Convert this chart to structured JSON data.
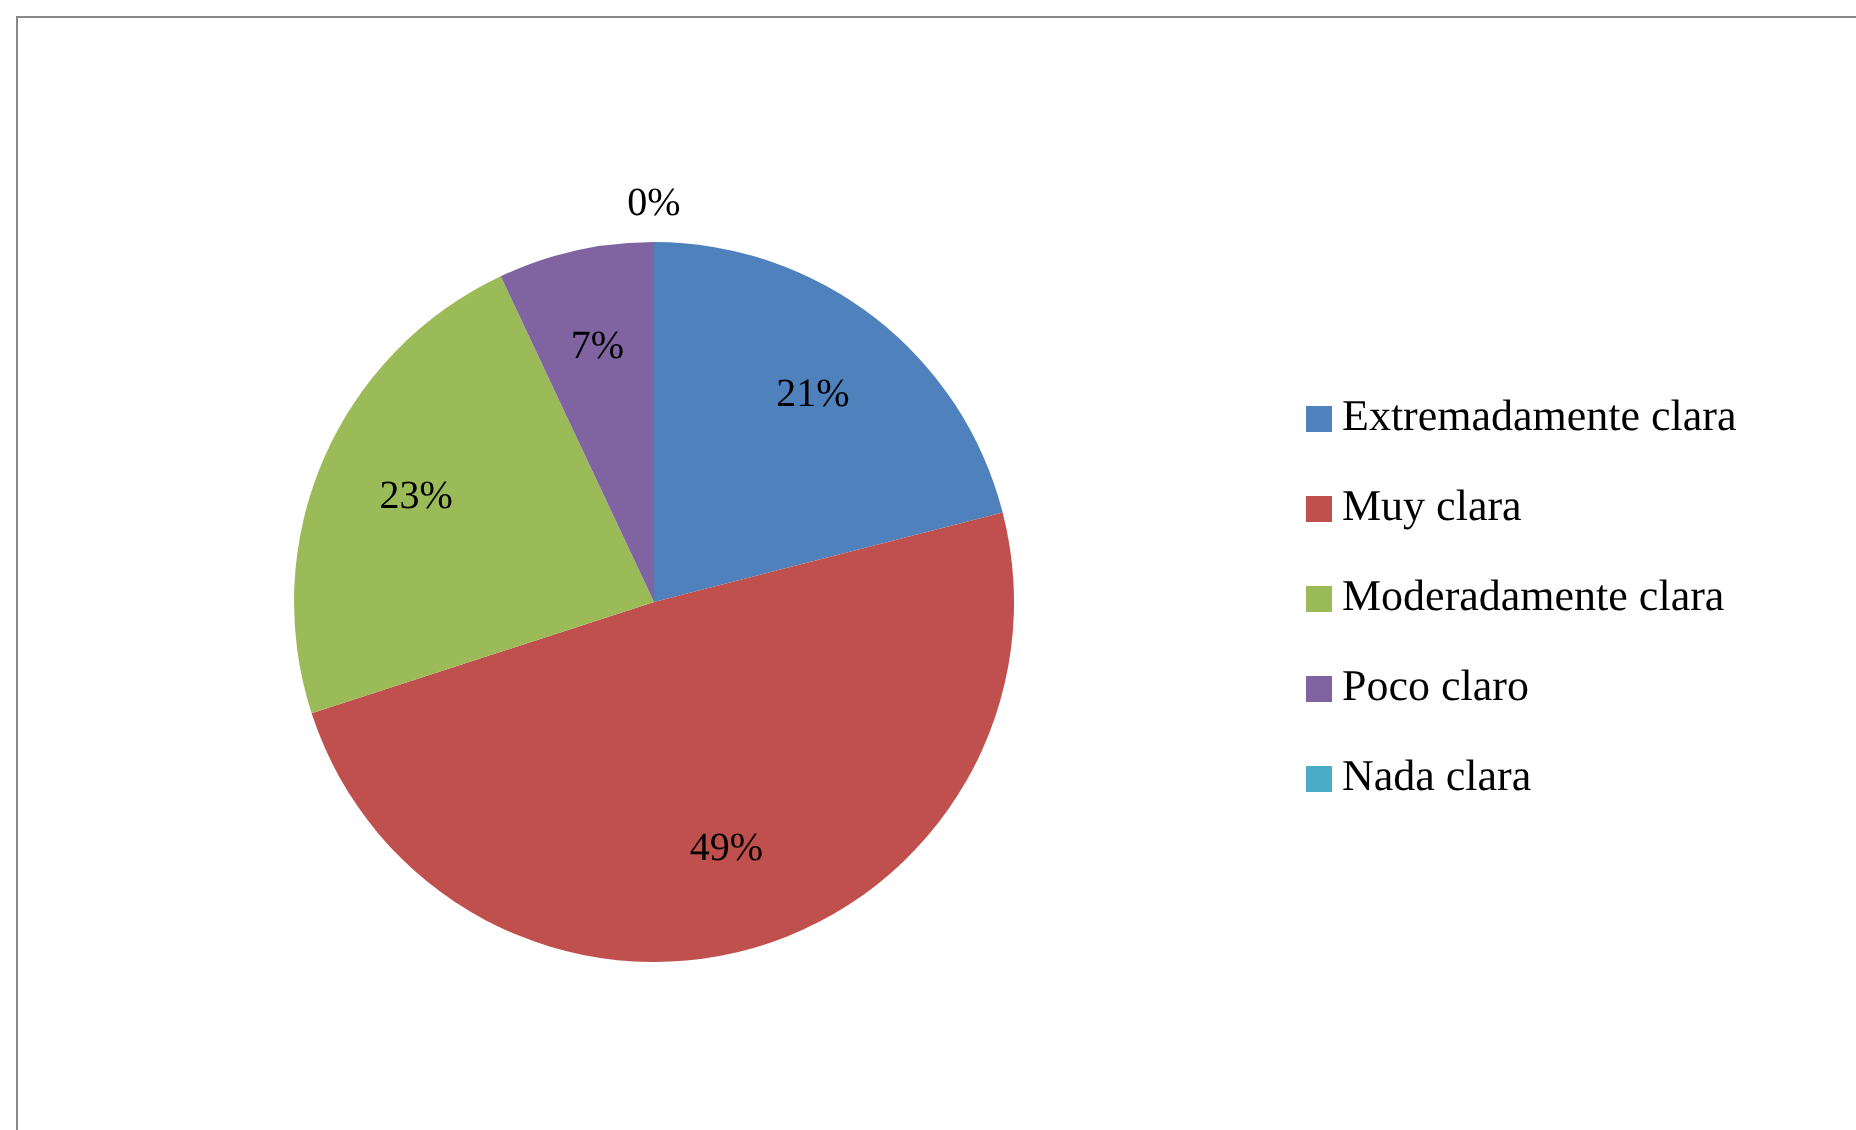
{
  "chart_data": {
    "type": "pie",
    "categories": [
      "Extremadamente clara",
      "Muy clara",
      "Moderadamente clara",
      "Poco claro",
      "Nada clara"
    ],
    "values": [
      21,
      49,
      23,
      7,
      0
    ],
    "value_labels": [
      "21%",
      "49%",
      "23%",
      "7%",
      "0%"
    ],
    "colors": [
      "#4f81bd",
      "#c0504d",
      "#9bbb59",
      "#8064a2",
      "#4bacc6"
    ],
    "legend": "right"
  }
}
